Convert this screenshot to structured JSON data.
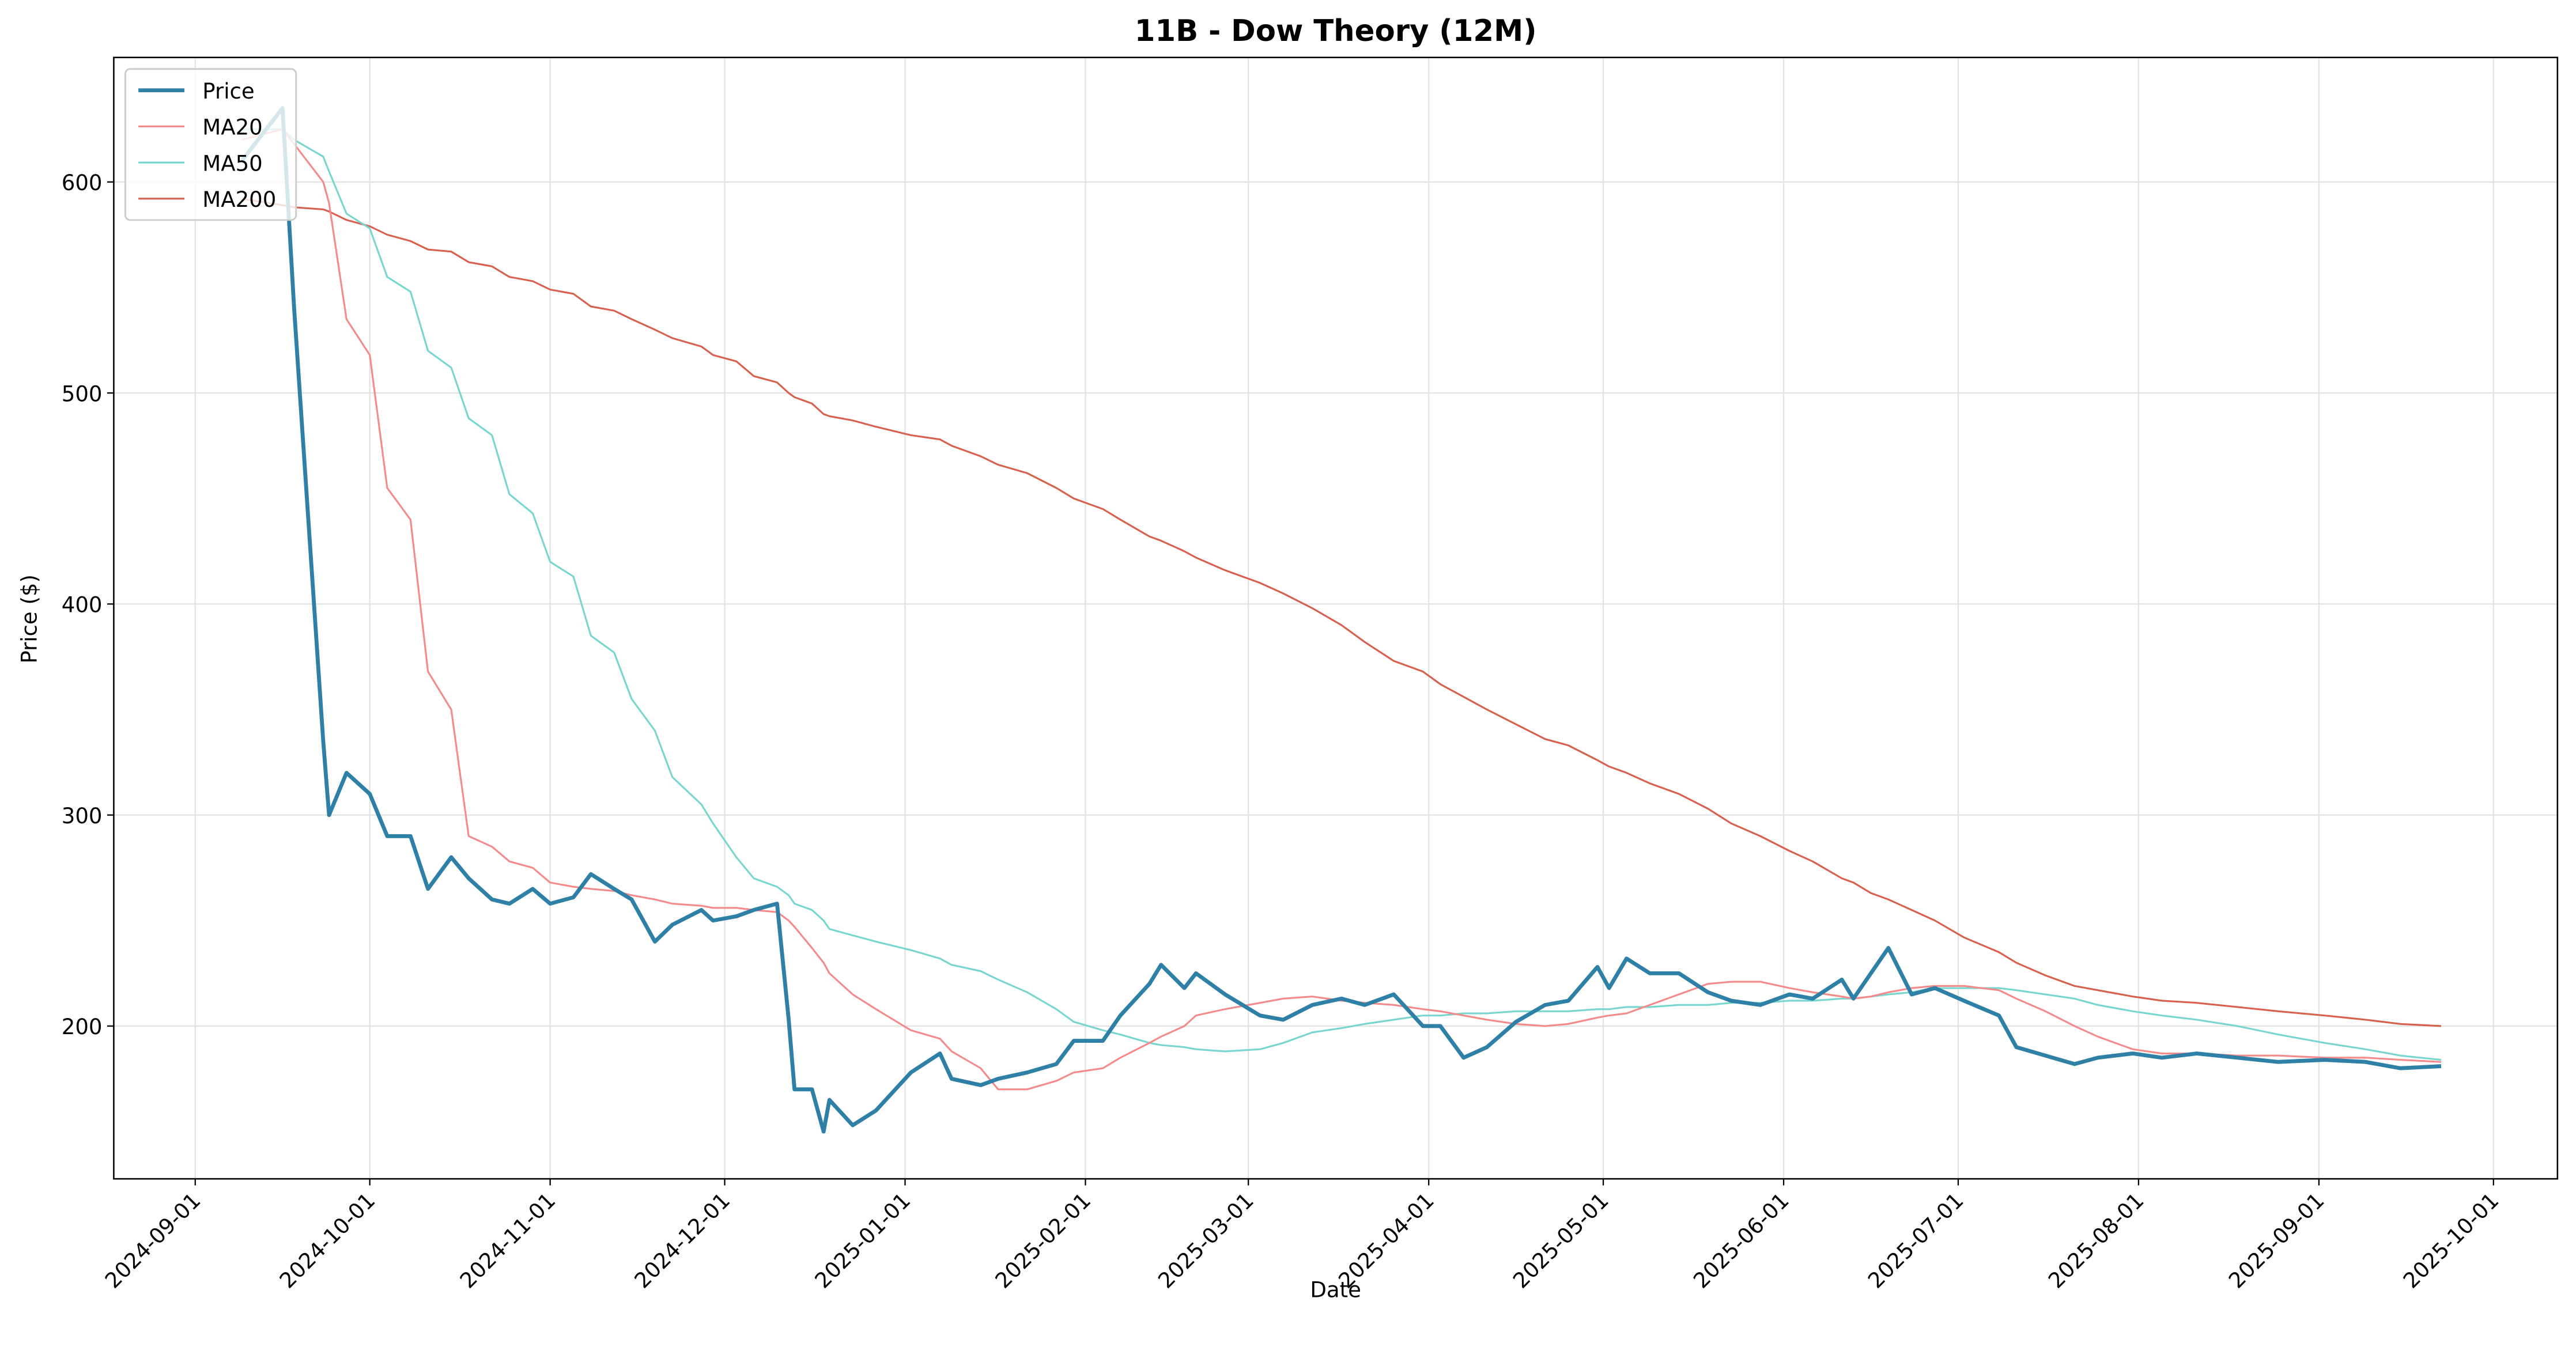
{
  "chart_data": {
    "type": "line",
    "title": "11B - Dow Theory (12M)",
    "x_label": "Date",
    "y_label": "Price ($)",
    "xlim": [
      "2024-08-18",
      "2025-10-12"
    ],
    "ylim": [
      127.6,
      659
    ],
    "xticks": [
      "2024-09-01",
      "2024-10-01",
      "2024-11-01",
      "2024-12-01",
      "2025-01-01",
      "2025-02-01",
      "2025-03-01",
      "2025-04-01",
      "2025-05-01",
      "2025-06-01",
      "2025-07-01",
      "2025-08-01",
      "2025-09-01",
      "2025-10-01"
    ],
    "yticks": [
      200,
      300,
      400,
      500,
      600
    ],
    "grid": true,
    "legend": "upper left",
    "x": [
      "2024-09-09",
      "2024-09-16",
      "2024-09-18",
      "2024-09-23",
      "2024-09-24",
      "2024-09-27",
      "2024-10-01",
      "2024-10-04",
      "2024-10-08",
      "2024-10-11",
      "2024-10-15",
      "2024-10-18",
      "2024-10-22",
      "2024-10-25",
      "2024-10-29",
      "2024-11-01",
      "2024-11-05",
      "2024-11-08",
      "2024-11-12",
      "2024-11-15",
      "2024-11-19",
      "2024-11-22",
      "2024-11-27",
      "2024-11-29",
      "2024-12-03",
      "2024-12-06",
      "2024-12-10",
      "2024-12-12",
      "2024-12-13",
      "2024-12-16",
      "2024-12-18",
      "2024-12-19",
      "2024-12-23",
      "2024-12-27",
      "2025-01-02",
      "2025-01-07",
      "2025-01-09",
      "2025-01-14",
      "2025-01-17",
      "2025-01-22",
      "2025-01-27",
      "2025-01-30",
      "2025-02-04",
      "2025-02-07",
      "2025-02-12",
      "2025-02-14",
      "2025-02-18",
      "2025-02-20",
      "2025-02-25",
      "2025-03-03",
      "2025-03-07",
      "2025-03-12",
      "2025-03-17",
      "2025-03-21",
      "2025-03-26",
      "2025-03-31",
      "2025-04-03",
      "2025-04-07",
      "2025-04-11",
      "2025-04-16",
      "2025-04-21",
      "2025-04-25",
      "2025-04-30",
      "2025-05-02",
      "2025-05-05",
      "2025-05-09",
      "2025-05-14",
      "2025-05-19",
      "2025-05-23",
      "2025-05-28",
      "2025-06-02",
      "2025-06-06",
      "2025-06-11",
      "2025-06-13",
      "2025-06-16",
      "2025-06-19",
      "2025-06-23",
      "2025-06-27",
      "2025-07-02",
      "2025-07-08",
      "2025-07-11",
      "2025-07-16",
      "2025-07-21",
      "2025-07-25",
      "2025-07-31",
      "2025-08-05",
      "2025-08-11",
      "2025-08-18",
      "2025-08-25",
      "2025-09-02",
      "2025-09-09",
      "2025-09-15",
      "2025-09-22"
    ],
    "series": [
      {
        "name": "Price",
        "color": "#2e80a6",
        "values": [
          610,
          635,
          540,
          335,
          300,
          320,
          310,
          290,
          290,
          265,
          280,
          270,
          260,
          258,
          265,
          258,
          261,
          272,
          265,
          260,
          240,
          248,
          255,
          250,
          252,
          255,
          258,
          203,
          170,
          170,
          150,
          165,
          153,
          160,
          178,
          187,
          175,
          172,
          175,
          178,
          182,
          193,
          193,
          205,
          220,
          229,
          218,
          225,
          215,
          205,
          203,
          210,
          213,
          210,
          215,
          200,
          200,
          185,
          190,
          202,
          210,
          212,
          228,
          218,
          232,
          225,
          225,
          216,
          212,
          210,
          215,
          213,
          222,
          213,
          225,
          237,
          215,
          218,
          212,
          205,
          190,
          186,
          182,
          185,
          187,
          185,
          187,
          185,
          183,
          184,
          183,
          180,
          181
        ]
      },
      {
        "name": "MA20",
        "color": "#f58a8a",
        "values": [
          620,
          625,
          618,
          600,
          590,
          535,
          518,
          455,
          440,
          368,
          350,
          290,
          285,
          278,
          275,
          268,
          266,
          265,
          264,
          262,
          260,
          258,
          257,
          256,
          256,
          255,
          254,
          250,
          247,
          237,
          230,
          225,
          215,
          208,
          198,
          194,
          188,
          180,
          170,
          170,
          174,
          178,
          180,
          185,
          192,
          195,
          200,
          205,
          208,
          211,
          213,
          214,
          212,
          211,
          210,
          208,
          207,
          205,
          203,
          201,
          200,
          201,
          204,
          205,
          206,
          210,
          215,
          220,
          221,
          221,
          218,
          216,
          214,
          213,
          214,
          216,
          218,
          219,
          219,
          217,
          213,
          207,
          200,
          195,
          189,
          187,
          187,
          186,
          186,
          185,
          185,
          184,
          183
        ]
      },
      {
        "name": "MA50",
        "color": "#78d6cf",
        "values": [
          625,
          625,
          620,
          612,
          605,
          585,
          578,
          555,
          548,
          520,
          512,
          488,
          480,
          452,
          443,
          420,
          413,
          385,
          377,
          355,
          340,
          318,
          305,
          296,
          280,
          270,
          266,
          262,
          258,
          255,
          250,
          246,
          243,
          240,
          236,
          232,
          229,
          226,
          222,
          216,
          208,
          202,
          198,
          196,
          192,
          191,
          190,
          189,
          188,
          189,
          192,
          197,
          199,
          201,
          203,
          205,
          205,
          206,
          206,
          207,
          207,
          207,
          208,
          208,
          209,
          209,
          210,
          210,
          211,
          211,
          212,
          212,
          213,
          213,
          214,
          215,
          216,
          218,
          218,
          218,
          217,
          215,
          213,
          210,
          207,
          205,
          203,
          200,
          196,
          192,
          189,
          186,
          184
        ]
      },
      {
        "name": "MA200",
        "color": "#d8604f",
        "values": [
          592,
          589,
          588,
          587,
          586,
          582,
          579,
          575,
          572,
          568,
          567,
          562,
          560,
          555,
          553,
          549,
          547,
          541,
          539,
          535,
          530,
          526,
          522,
          518,
          515,
          508,
          505,
          500,
          498,
          495,
          490,
          489,
          487,
          484,
          480,
          478,
          475,
          470,
          466,
          462,
          455,
          450,
          445,
          440,
          432,
          430,
          425,
          422,
          416,
          410,
          405,
          398,
          390,
          382,
          373,
          368,
          362,
          356,
          350,
          343,
          336,
          333,
          326,
          323,
          320,
          315,
          310,
          303,
          296,
          290,
          283,
          278,
          270,
          268,
          263,
          260,
          255,
          250,
          242,
          235,
          230,
          224,
          219,
          217,
          214,
          212,
          211,
          209,
          207,
          205,
          203,
          201,
          200
        ]
      }
    ]
  }
}
